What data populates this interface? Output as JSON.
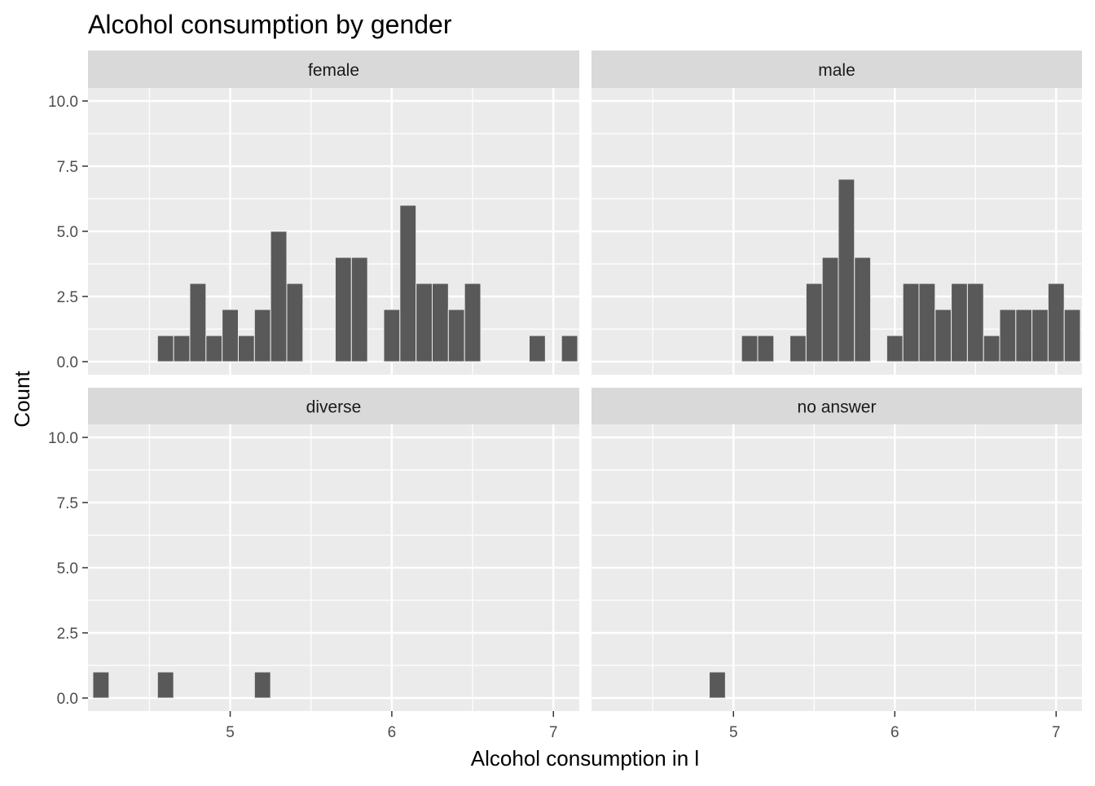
{
  "chart_data": {
    "type": "bar",
    "title": "Alcohol consumption by gender",
    "xlabel": "Alcohol consumption in l",
    "ylabel": "Count",
    "xlim": [
      4.12,
      7.16
    ],
    "ylim": [
      -0.5,
      10.5
    ],
    "x_ticks": [
      5,
      6,
      7
    ],
    "y_ticks": [
      "0.0",
      "2.5",
      "5.0",
      "7.5",
      "10.0"
    ],
    "bin_width": 0.1,
    "bar_color": "#595959",
    "panel_background": "#ebebeb",
    "strip_background": "#d9d9d9",
    "grid": true,
    "facets": [
      {
        "label": "female",
        "x": [
          4.6,
          4.7,
          4.8,
          4.9,
          5.0,
          5.1,
          5.2,
          5.3,
          5.4,
          5.7,
          5.8,
          6.0,
          6.1,
          6.2,
          6.3,
          6.4,
          6.5,
          6.9,
          7.1
        ],
        "values": [
          1,
          1,
          3,
          1,
          2,
          1,
          2,
          5,
          3,
          4,
          4,
          2,
          6,
          3,
          3,
          2,
          3,
          1,
          1
        ]
      },
      {
        "label": "male",
        "x": [
          5.1,
          5.2,
          5.4,
          5.5,
          5.6,
          5.7,
          5.8,
          6.0,
          6.1,
          6.2,
          6.3,
          6.4,
          6.5,
          6.6,
          6.7,
          6.8,
          6.9,
          7.0,
          7.1
        ],
        "values": [
          1,
          1,
          1,
          3,
          4,
          7,
          4,
          1,
          3,
          3,
          2,
          3,
          3,
          1,
          2,
          2,
          2,
          3,
          2
        ]
      },
      {
        "label": "diverse",
        "x": [
          4.2,
          4.6,
          5.2
        ],
        "values": [
          1,
          1,
          1
        ]
      },
      {
        "label": "no answer",
        "x": [
          4.9
        ],
        "values": [
          1
        ]
      }
    ]
  }
}
